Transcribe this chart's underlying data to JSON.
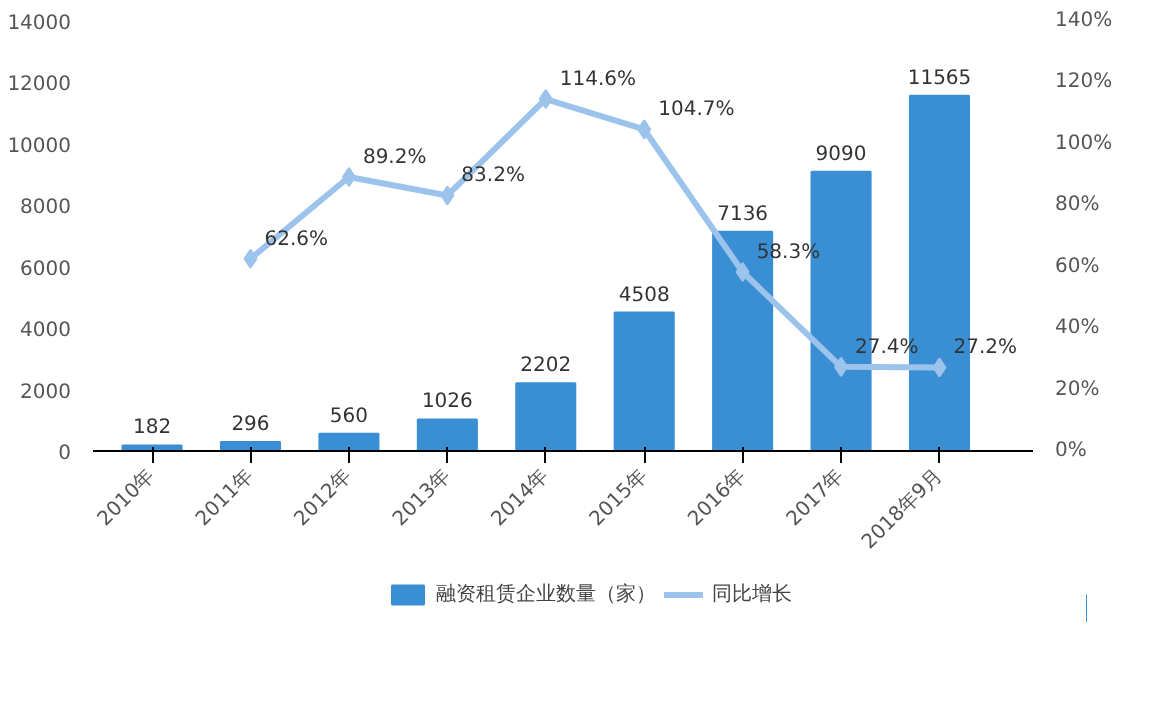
{
  "chart_data": {
    "type": "bar",
    "categories": [
      "2010年",
      "2011年",
      "2012年",
      "2013年",
      "2014年",
      "2015年",
      "2016年",
      "2017年",
      "2018年9月"
    ],
    "series": [
      {
        "name": "融资租赁企业数量（家）",
        "color": "#3a8fd4",
        "values": [
          182,
          296,
          560,
          1026,
          2202,
          4508,
          7136,
          9090,
          11565
        ],
        "value_labels": [
          "182",
          "296",
          "560",
          "1026",
          "2202",
          "4508",
          "7136",
          "9090",
          "11565"
        ]
      },
      {
        "name": "同比增长",
        "type": "line",
        "axis": "y2",
        "color": "#9cc3ec",
        "marker": "diamond",
        "values": [
          null,
          62.6,
          89.2,
          83.2,
          114.6,
          104.7,
          58.3,
          27.4,
          27.2
        ],
        "value_labels": [
          null,
          "62.6%",
          "89.2%",
          "83.2%",
          "114.6%",
          "104.7%",
          "58.3%",
          "27.4%",
          "27.2%"
        ]
      }
    ],
    "ylim": [
      0,
      14000
    ],
    "yticks": [
      0,
      2000,
      4000,
      6000,
      8000,
      10000,
      12000,
      14000
    ],
    "y2lim": [
      0,
      140
    ],
    "y2ticks": [
      {
        "value": 0,
        "label": "0%"
      },
      {
        "value": 20,
        "label": "20%"
      },
      {
        "value": 40,
        "label": "40%"
      },
      {
        "value": 60,
        "label": "60%"
      },
      {
        "value": 80,
        "label": "80%"
      },
      {
        "value": 100,
        "label": "100%"
      },
      {
        "value": 120,
        "label": "120%"
      },
      {
        "value": 140,
        "label": "140%"
      }
    ],
    "grid": false,
    "legend": "bottom"
  }
}
